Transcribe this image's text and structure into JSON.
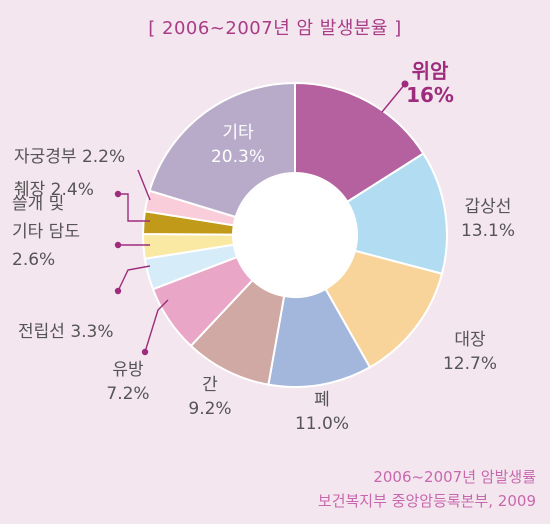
{
  "chart_data": {
    "type": "pie",
    "title": "[ 2006~2007년 암 발생분율 ]",
    "unit": "%",
    "slices": [
      {
        "label": "위암",
        "value": 16,
        "value_text": "16%",
        "color": "#b5609f",
        "highlight": true
      },
      {
        "label": "갑상선",
        "value": 13.1,
        "value_text": "13.1%",
        "color": "#b2dcf2"
      },
      {
        "label": "대장",
        "value": 12.7,
        "value_text": "12.7%",
        "color": "#f9d49a"
      },
      {
        "label": "폐",
        "value": 11.0,
        "value_text": "11.0%",
        "color": "#a3b6dc"
      },
      {
        "label": "간",
        "value": 9.2,
        "value_text": "9.2%",
        "color": "#d0a8a4"
      },
      {
        "label": "유방",
        "value": 7.2,
        "value_text": "7.2%",
        "color": "#e9a6c6"
      },
      {
        "label": "전립선",
        "value": 3.3,
        "value_text": "3.3%",
        "color": "#d6ecf8"
      },
      {
        "label": "쓸개 및 기타 담도",
        "value": 2.6,
        "value_text": "2.6%",
        "color": "#fae9a2"
      },
      {
        "label": "췌장",
        "value": 2.4,
        "value_text": "2.4%",
        "color": "#c19a1a"
      },
      {
        "label": "자궁경부",
        "value": 2.2,
        "value_text": "2.2%",
        "color": "#f9cdd9"
      },
      {
        "label": "기타",
        "value": 20.3,
        "value_text": "20.3%",
        "color": "#b7abc9"
      }
    ]
  },
  "source": {
    "line1": "2006~2007년 암발생률",
    "line2": "보건복지부 중앙암등록본부, 2009"
  }
}
